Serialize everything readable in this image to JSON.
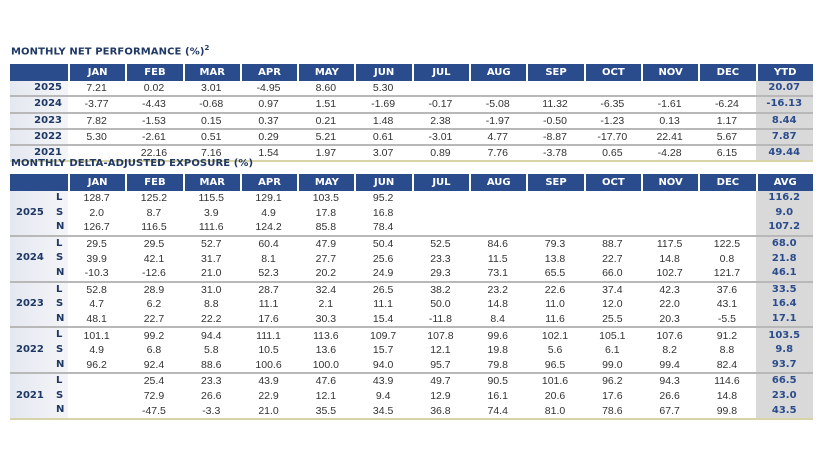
{
  "performance": {
    "title": "MONTHLY NET PERFORMANCE (%)",
    "title_superscript": "2",
    "headers": [
      "JAN",
      "FEB",
      "MAR",
      "APR",
      "MAY",
      "JUN",
      "JUL",
      "AUG",
      "SEP",
      "OCT",
      "NOV",
      "DEC",
      "YTD"
    ],
    "rows": [
      {
        "year": "2025",
        "values": [
          "7.21",
          "0.02",
          "3.01",
          "-4.95",
          "8.60",
          "5.30",
          "",
          "",
          "",
          "",
          "",
          "",
          "20.07"
        ]
      },
      {
        "year": "2024",
        "values": [
          "-3.77",
          "-4.43",
          "-0.68",
          "0.97",
          "1.51",
          "-1.69",
          "-0.17",
          "-5.08",
          "11.32",
          "-6.35",
          "-1.61",
          "-6.24",
          "-16.13"
        ]
      },
      {
        "year": "2023",
        "values": [
          "7.82",
          "-1.53",
          "0.15",
          "0.37",
          "0.21",
          "1.48",
          "2.38",
          "-1.97",
          "-0.50",
          "-1.23",
          "0.13",
          "1.17",
          "8.44"
        ]
      },
      {
        "year": "2022",
        "values": [
          "5.30",
          "-2.61",
          "0.51",
          "0.29",
          "5.21",
          "0.61",
          "-3.01",
          "4.77",
          "-8.87",
          "-17.70",
          "22.41",
          "5.67",
          "7.87"
        ]
      },
      {
        "year": "2021",
        "values": [
          "",
          "22.16",
          "7.16",
          "1.54",
          "1.97",
          "3.07",
          "0.89",
          "7.76",
          "-3.78",
          "0.65",
          "-4.28",
          "6.15",
          "49.44"
        ]
      }
    ]
  },
  "exposure": {
    "title": "MONTHLY DELTA-ADJUSTED EXPOSURE (%)",
    "headers": [
      "JAN",
      "FEB",
      "MAR",
      "APR",
      "MAY",
      "JUN",
      "JUL",
      "AUG",
      "SEP",
      "OCT",
      "NOV",
      "DEC",
      "AVG"
    ],
    "groups": [
      {
        "year": "2025",
        "rows": [
          {
            "key": "L",
            "values": [
              "128.7",
              "125.2",
              "115.5",
              "129.1",
              "103.5",
              "95.2",
              "",
              "",
              "",
              "",
              "",
              "",
              "116.2"
            ]
          },
          {
            "key": "S",
            "values": [
              "2.0",
              "8.7",
              "3.9",
              "4.9",
              "17.8",
              "16.8",
              "",
              "",
              "",
              "",
              "",
              "",
              "9.0"
            ]
          },
          {
            "key": "N",
            "values": [
              "126.7",
              "116.5",
              "111.6",
              "124.2",
              "85.8",
              "78.4",
              "",
              "",
              "",
              "",
              "",
              "",
              "107.2"
            ]
          }
        ]
      },
      {
        "year": "2024",
        "rows": [
          {
            "key": "L",
            "values": [
              "29.5",
              "29.5",
              "52.7",
              "60.4",
              "47.9",
              "50.4",
              "52.5",
              "84.6",
              "79.3",
              "88.7",
              "117.5",
              "122.5",
              "68.0"
            ]
          },
          {
            "key": "S",
            "values": [
              "39.9",
              "42.1",
              "31.7",
              "8.1",
              "27.7",
              "25.6",
              "23.3",
              "11.5",
              "13.8",
              "22.7",
              "14.8",
              "0.8",
              "21.8"
            ]
          },
          {
            "key": "N",
            "values": [
              "-10.3",
              "-12.6",
              "21.0",
              "52.3",
              "20.2",
              "24.9",
              "29.3",
              "73.1",
              "65.5",
              "66.0",
              "102.7",
              "121.7",
              "46.1"
            ]
          }
        ]
      },
      {
        "year": "2023",
        "rows": [
          {
            "key": "L",
            "values": [
              "52.8",
              "28.9",
              "31.0",
              "28.7",
              "32.4",
              "26.5",
              "38.2",
              "23.2",
              "22.6",
              "37.4",
              "42.3",
              "37.6",
              "33.5"
            ]
          },
          {
            "key": "S",
            "values": [
              "4.7",
              "6.2",
              "8.8",
              "11.1",
              "2.1",
              "11.1",
              "50.0",
              "14.8",
              "11.0",
              "12.0",
              "22.0",
              "43.1",
              "16.4"
            ]
          },
          {
            "key": "N",
            "values": [
              "48.1",
              "22.7",
              "22.2",
              "17.6",
              "30.3",
              "15.4",
              "-11.8",
              "8.4",
              "11.6",
              "25.5",
              "20.3",
              "-5.5",
              "17.1"
            ]
          }
        ]
      },
      {
        "year": "2022",
        "rows": [
          {
            "key": "L",
            "values": [
              "101.1",
              "99.2",
              "94.4",
              "111.1",
              "113.6",
              "109.7",
              "107.8",
              "99.6",
              "102.1",
              "105.1",
              "107.6",
              "91.2",
              "103.5"
            ]
          },
          {
            "key": "S",
            "values": [
              "4.9",
              "6.8",
              "5.8",
              "10.5",
              "13.6",
              "15.7",
              "12.1",
              "19.8",
              "5.6",
              "6.1",
              "8.2",
              "8.8",
              "9.8"
            ]
          },
          {
            "key": "N",
            "values": [
              "96.2",
              "92.4",
              "88.6",
              "100.6",
              "100.0",
              "94.0",
              "95.7",
              "79.8",
              "96.5",
              "99.0",
              "99.4",
              "82.4",
              "93.7"
            ]
          }
        ]
      },
      {
        "year": "2021",
        "rows": [
          {
            "key": "L",
            "values": [
              "",
              "25.4",
              "23.3",
              "43.9",
              "47.6",
              "43.9",
              "49.7",
              "90.5",
              "101.6",
              "96.2",
              "94.3",
              "114.6",
              "66.5"
            ]
          },
          {
            "key": "S",
            "values": [
              "",
              "72.9",
              "26.6",
              "22.9",
              "12.1",
              "9.4",
              "12.9",
              "16.1",
              "20.6",
              "17.6",
              "26.6",
              "14.8",
              "23.0"
            ]
          },
          {
            "key": "N",
            "values": [
              "",
              "-47.5",
              "-3.3",
              "21.0",
              "35.5",
              "34.5",
              "36.8",
              "74.4",
              "81.0",
              "78.6",
              "67.7",
              "99.8",
              "43.5"
            ]
          }
        ]
      }
    ]
  },
  "colors": {
    "header": "#2b4c8c",
    "total_bg": "#d9d9d9",
    "total_text": "#2b4c8c"
  }
}
